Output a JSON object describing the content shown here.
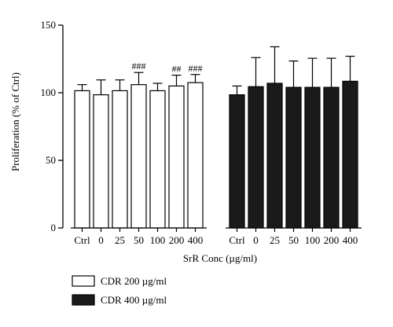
{
  "chart_data": {
    "type": "bar",
    "title": "",
    "ylabel": "Proliferation (% of Ctrl)",
    "xlabel": "SrR Conc (µg/ml)",
    "ylim": [
      0,
      150
    ],
    "yticks": [
      "0",
      "50",
      "100",
      "150"
    ],
    "categories": [
      "Ctrl",
      "0",
      "25",
      "50",
      "100",
      "200",
      "400"
    ],
    "series": [
      {
        "name": "CDR 200 µg/ml",
        "color": "#ffffff",
        "values": [
          101.5,
          98.5,
          101.5,
          106,
          101.5,
          105,
          107.5
        ],
        "errors": [
          4.5,
          11,
          8,
          9,
          5.5,
          8,
          6
        ],
        "annotations": [
          "",
          "",
          "",
          "###",
          "",
          "##",
          "###"
        ]
      },
      {
        "name": "CDR 400 µg/ml",
        "color": "#1a1a1a",
        "values": [
          98.5,
          104.5,
          107,
          104,
          104,
          104,
          108.5
        ],
        "errors": [
          6.5,
          21.5,
          27,
          19.5,
          21.5,
          21.5,
          18.5
        ],
        "annotations": [
          "",
          "",
          "",
          "",
          "",
          "",
          ""
        ]
      }
    ],
    "legend_position": "bottom-left",
    "grid": false
  }
}
